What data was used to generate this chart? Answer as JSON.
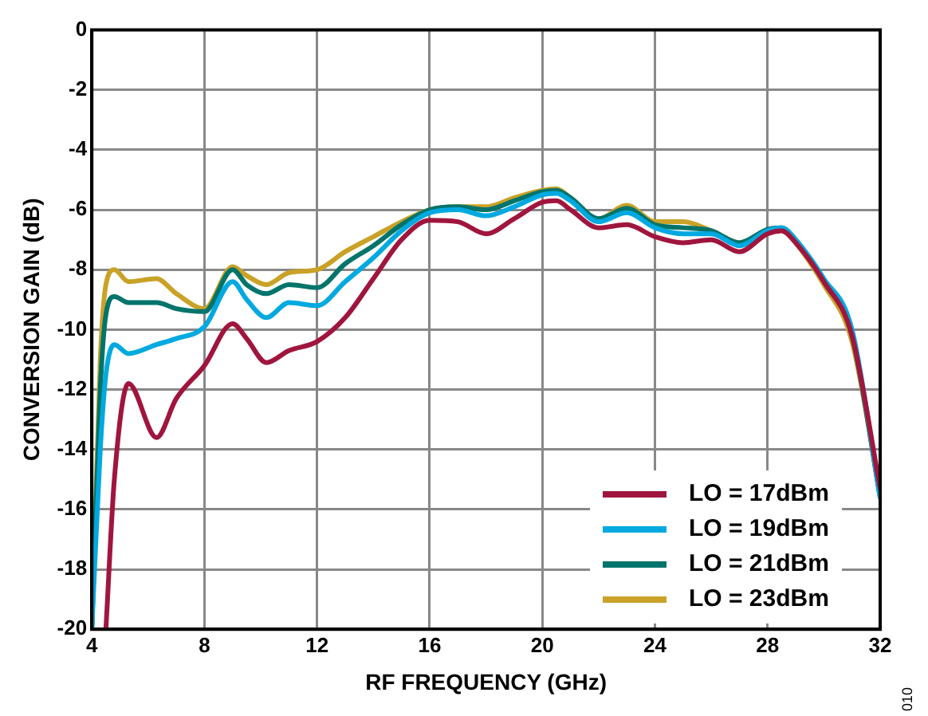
{
  "chart_data": {
    "type": "line",
    "xlabel": "RF FREQUENCY (GHz)",
    "ylabel": "CONVERSION GAIN (dB)",
    "x": [
      4,
      4.3,
      4.5,
      4.8,
      5.3,
      6.3,
      7,
      8,
      9,
      9.5,
      10.2,
      11,
      12,
      13,
      14,
      15,
      16,
      17,
      18,
      19,
      20,
      20.5,
      21,
      22,
      23,
      24,
      25,
      26,
      27,
      28,
      28.5,
      29,
      30,
      31,
      32
    ],
    "series": [
      {
        "name": "LO = 17dBm",
        "color": "#a0153e",
        "values": [
          null,
          null,
          -20,
          -15,
          -11.8,
          -13.6,
          -12.3,
          -11.2,
          -9.8,
          -10.3,
          -11.1,
          -10.7,
          -10.4,
          -9.6,
          -8.3,
          -7.0,
          -6.35,
          -6.4,
          -6.8,
          -6.3,
          -5.75,
          -5.7,
          -6.0,
          -6.6,
          -6.5,
          -6.9,
          -7.1,
          -7.0,
          -7.4,
          -6.8,
          -6.7,
          -7.1,
          -8.4,
          -10.2,
          -15.3
        ]
      },
      {
        "name": "LO = 19dBm",
        "color": "#00a9e0",
        "values": [
          -20,
          -14,
          -11.5,
          -10.5,
          -10.8,
          -10.5,
          -10.3,
          -9.9,
          -8.4,
          -9.0,
          -9.6,
          -9.1,
          -9.2,
          -8.4,
          -7.6,
          -6.7,
          -6.1,
          -6.0,
          -6.2,
          -5.9,
          -5.5,
          -5.45,
          -5.7,
          -6.4,
          -6.1,
          -6.6,
          -6.8,
          -6.8,
          -7.2,
          -6.7,
          -6.6,
          -7.0,
          -8.3,
          -10.0,
          -15.6
        ]
      },
      {
        "name": "LO = 21dBm",
        "color": "#00746b",
        "values": [
          -20,
          -12,
          -9.5,
          -8.9,
          -9.1,
          -9.1,
          -9.3,
          -9.4,
          -8.0,
          -8.5,
          -8.8,
          -8.5,
          -8.6,
          -7.8,
          -7.2,
          -6.5,
          -6.0,
          -5.9,
          -6.0,
          -5.7,
          -5.4,
          -5.35,
          -5.6,
          -6.3,
          -5.95,
          -6.5,
          -6.6,
          -6.7,
          -7.1,
          -6.65,
          -6.6,
          -7.0,
          -8.4,
          -10.2,
          -15.6
        ]
      },
      {
        "name": "LO = 23dBm",
        "color": "#c9a227",
        "values": [
          -20,
          -11,
          -8.5,
          -8.0,
          -8.4,
          -8.3,
          -8.8,
          -9.3,
          -7.9,
          -8.2,
          -8.5,
          -8.1,
          -8.0,
          -7.4,
          -6.9,
          -6.4,
          -6.0,
          -5.9,
          -5.9,
          -5.6,
          -5.35,
          -5.3,
          -5.6,
          -6.3,
          -5.85,
          -6.4,
          -6.4,
          -6.7,
          -7.1,
          -6.7,
          -6.6,
          -7.1,
          -8.5,
          -10.4,
          -15.5
        ]
      }
    ],
    "xlim": [
      4,
      32
    ],
    "xticks": [
      4,
      8,
      12,
      16,
      20,
      24,
      28,
      32
    ],
    "ylim": [
      -20,
      0
    ],
    "yticks": [
      -20,
      -18,
      -16,
      -14,
      -12,
      -10,
      -8,
      -6,
      -4,
      -2,
      0
    ],
    "grid": true,
    "legend": "bottom right",
    "marker": "none",
    "line_style": "solid",
    "annotations": [
      "010"
    ]
  }
}
